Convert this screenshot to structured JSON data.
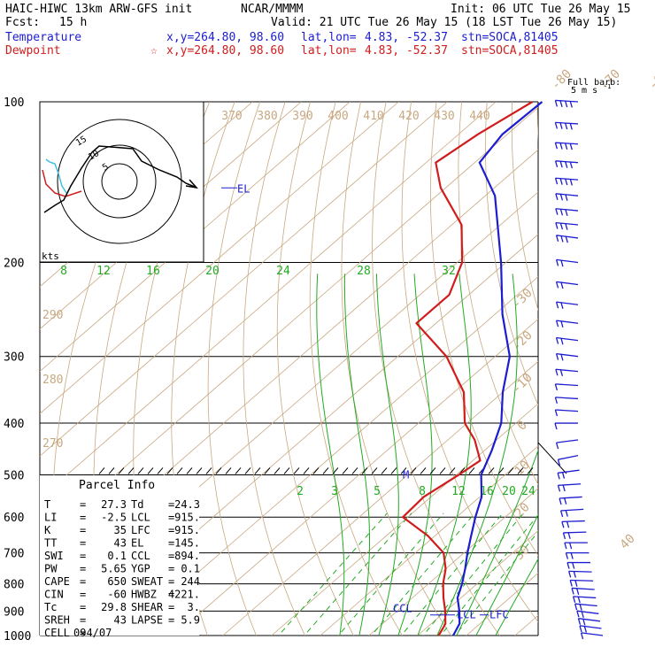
{
  "header": {
    "model": "HAIC-HIWC 13km ARW-GFS init",
    "org": "NCAR/MMMM",
    "init": "Init: 06 UTC Tue 26 May 15",
    "fcst_label": "Fcst:",
    "fcst_value": "15 h",
    "valid": "Valid: 21 UTC Tue 26 May 15 (18 LST Tue 26 May 15)",
    "temperature_label": "Temperature",
    "dewpoint_label": "Dewpoint",
    "xy_text": "x,y=264.80, 98.60",
    "latlon_label": "lat,lon=",
    "latlon_value": "4.83, -52.37",
    "stn": "stn=SOCA,81405",
    "star": "☆"
  },
  "barb_legend": {
    "line1": "Full barb:",
    "line2": "5 m s",
    "sup": "-1"
  },
  "parcel_info": {
    "title": "Parcel Info",
    "rows": [
      [
        "T",
        "=",
        "27.3",
        "Td",
        "=",
        "24.3"
      ],
      [
        "LI",
        "=",
        "-2.5",
        "LCL",
        "=",
        "915."
      ],
      [
        "K",
        "=",
        "35",
        "LFC",
        "=",
        "915."
      ],
      [
        "TT",
        "=",
        "43",
        "EL",
        "=",
        "145."
      ],
      [
        "SWI",
        "=",
        "0.1",
        "CCL",
        "=",
        "894."
      ],
      [
        "PW",
        "=",
        "5.65",
        "YGP",
        "=",
        "0.1"
      ],
      [
        "CAPE",
        "=",
        "650",
        "SWEAT",
        "=",
        "244"
      ],
      [
        "CIN",
        "=",
        "-60",
        "HWBZ",
        "=",
        "4221."
      ],
      [
        "Tc",
        "=",
        "29.8",
        "SHEAR",
        "=",
        "3."
      ],
      [
        "SREH",
        "=",
        "43",
        "LAPSE",
        "=",
        "5.9"
      ],
      [
        "CELL",
        "=",
        "094/07",
        "",
        "",
        ""
      ]
    ]
  },
  "hodograph": {
    "unit_label": "kts",
    "ring_labels": [
      "5",
      "10",
      "15"
    ]
  },
  "colors": {
    "temperature": "#1c1cd0",
    "dewpoint": "#d01c1c",
    "isotherm": "#c8a880",
    "dry_adiabat": "#c8a880",
    "saturated_adiabat": "#22aa22",
    "mixing_ratio": "#22aa22",
    "isobar": "#000000",
    "barb": "#1c1cd0",
    "hodo_path": "#000000",
    "hodo_low": "#d01c1c",
    "hodo_mid": "#40c0e0"
  },
  "chart_data": {
    "type": "line",
    "title": "",
    "y_axis": {
      "label": "",
      "scale": "log",
      "direction": "reversed",
      "range": [
        1000,
        100
      ],
      "ticks": [
        100,
        200,
        300,
        400,
        500,
        600,
        700,
        800,
        900,
        1000
      ]
    },
    "isotherm_labels": [
      "-80",
      "-70",
      "-60",
      "-50",
      "-40",
      "-30",
      "-20",
      "-10",
      "0",
      "10",
      "20",
      "30",
      "40"
    ],
    "dry_adiabat_labels_top": [
      "370",
      "380",
      "390",
      "400",
      "410",
      "420",
      "430",
      "440"
    ],
    "dry_adiabat_labels_left": [
      "290",
      "280",
      "270"
    ],
    "saturated_adiabat_labels": [
      "8",
      "12",
      "16",
      "20",
      "24",
      "28",
      "32"
    ],
    "mixing_ratio_labels": [
      "2",
      "3",
      "5",
      "8",
      "12",
      "16",
      "20",
      "24"
    ],
    "series": [
      {
        "name": "Temperature",
        "points": [
          {
            "p": 1000,
            "t": 27.3
          },
          {
            "p": 950,
            "t": 25.8
          },
          {
            "p": 900,
            "t": 22.8
          },
          {
            "p": 850,
            "t": 19.3
          },
          {
            "p": 800,
            "t": 16.9
          },
          {
            "p": 750,
            "t": 14.0
          },
          {
            "p": 700,
            "t": 10.7
          },
          {
            "p": 650,
            "t": 7.4
          },
          {
            "p": 600,
            "t": 3.9
          },
          {
            "p": 550,
            "t": 0.4
          },
          {
            "p": 500,
            "t": -4.9
          },
          {
            "p": 450,
            "t": -8.5
          },
          {
            "p": 400,
            "t": -13.0
          },
          {
            "p": 350,
            "t": -20.0
          },
          {
            "p": 300,
            "t": -27.0
          },
          {
            "p": 250,
            "t": -38.5
          },
          {
            "p": 200,
            "t": -51.0
          },
          {
            "p": 150,
            "t": -68.0
          },
          {
            "p": 130,
            "t": -79.0
          },
          {
            "p": 115,
            "t": -81.0
          },
          {
            "p": 100,
            "t": -80.5
          }
        ]
      },
      {
        "name": "Dewpoint",
        "points": [
          {
            "p": 1000,
            "t": 24.3
          },
          {
            "p": 970,
            "t": 23.5
          },
          {
            "p": 950,
            "t": 22.9
          },
          {
            "p": 900,
            "t": 19.9
          },
          {
            "p": 850,
            "t": 16.4
          },
          {
            "p": 800,
            "t": 13.0
          },
          {
            "p": 750,
            "t": 10.0
          },
          {
            "p": 700,
            "t": 5.8
          },
          {
            "p": 650,
            "t": -1.5
          },
          {
            "p": 600,
            "t": -11.0
          },
          {
            "p": 550,
            "t": -11.5
          },
          {
            "p": 500,
            "t": -9.5
          },
          {
            "p": 470,
            "t": -8.5
          },
          {
            "p": 430,
            "t": -14.5
          },
          {
            "p": 400,
            "t": -20.5
          },
          {
            "p": 350,
            "t": -28.0
          },
          {
            "p": 300,
            "t": -40.0
          },
          {
            "p": 260,
            "t": -54.0
          },
          {
            "p": 230,
            "t": -54.0
          },
          {
            "p": 200,
            "t": -59.0
          },
          {
            "p": 170,
            "t": -68.0
          },
          {
            "p": 145,
            "t": -81.0
          },
          {
            "p": 130,
            "t": -88.0
          },
          {
            "p": 115,
            "t": -86.0
          },
          {
            "p": 100,
            "t": -82.5
          }
        ]
      }
    ],
    "annotations": [
      {
        "text": "EL",
        "p": 145
      },
      {
        "text": "M",
        "p": 500
      },
      {
        "text": "CCL",
        "p": 894
      },
      {
        "text": "LCL",
        "p": 915
      },
      {
        "text": "LFC",
        "p": 915
      }
    ],
    "wind_profile": [
      {
        "p": 100,
        "dir": 80,
        "speed": 20
      },
      {
        "p": 110,
        "dir": 80,
        "speed": 20
      },
      {
        "p": 120,
        "dir": 80,
        "speed": 20
      },
      {
        "p": 130,
        "dir": 78,
        "speed": 20
      },
      {
        "p": 140,
        "dir": 78,
        "speed": 20
      },
      {
        "p": 150,
        "dir": 75,
        "speed": 15
      },
      {
        "p": 160,
        "dir": 75,
        "speed": 15
      },
      {
        "p": 170,
        "dir": 75,
        "speed": 15
      },
      {
        "p": 180,
        "dir": 70,
        "speed": 15
      },
      {
        "p": 200,
        "dir": 70,
        "speed": 10
      },
      {
        "p": 220,
        "dir": 70,
        "speed": 10
      },
      {
        "p": 240,
        "dir": 70,
        "speed": 10
      },
      {
        "p": 260,
        "dir": 70,
        "speed": 10
      },
      {
        "p": 280,
        "dir": 70,
        "speed": 10
      },
      {
        "p": 300,
        "dir": 70,
        "speed": 10
      },
      {
        "p": 320,
        "dir": 75,
        "speed": 10
      },
      {
        "p": 340,
        "dir": 80,
        "speed": 5
      },
      {
        "p": 360,
        "dir": 80,
        "speed": 5
      },
      {
        "p": 380,
        "dir": 80,
        "speed": 5
      },
      {
        "p": 400,
        "dir": 90,
        "speed": 5
      },
      {
        "p": 430,
        "dir": 110,
        "speed": 5
      },
      {
        "p": 460,
        "dir": 120,
        "speed": 5
      },
      {
        "p": 490,
        "dir": 110,
        "speed": 10
      },
      {
        "p": 520,
        "dir": 100,
        "speed": 10
      },
      {
        "p": 550,
        "dir": 100,
        "speed": 10
      },
      {
        "p": 580,
        "dir": 100,
        "speed": 10
      },
      {
        "p": 610,
        "dir": 95,
        "speed": 10
      },
      {
        "p": 640,
        "dir": 95,
        "speed": 10
      },
      {
        "p": 670,
        "dir": 90,
        "speed": 10
      },
      {
        "p": 700,
        "dir": 90,
        "speed": 10
      },
      {
        "p": 730,
        "dir": 90,
        "speed": 10
      },
      {
        "p": 760,
        "dir": 85,
        "speed": 10
      },
      {
        "p": 790,
        "dir": 85,
        "speed": 10
      },
      {
        "p": 820,
        "dir": 80,
        "speed": 10
      },
      {
        "p": 850,
        "dir": 80,
        "speed": 10
      },
      {
        "p": 880,
        "dir": 75,
        "speed": 10
      },
      {
        "p": 910,
        "dir": 70,
        "speed": 10
      },
      {
        "p": 940,
        "dir": 70,
        "speed": 10
      },
      {
        "p": 970,
        "dir": 70,
        "speed": 10
      },
      {
        "p": 1000,
        "dir": 70,
        "speed": 5
      }
    ]
  }
}
